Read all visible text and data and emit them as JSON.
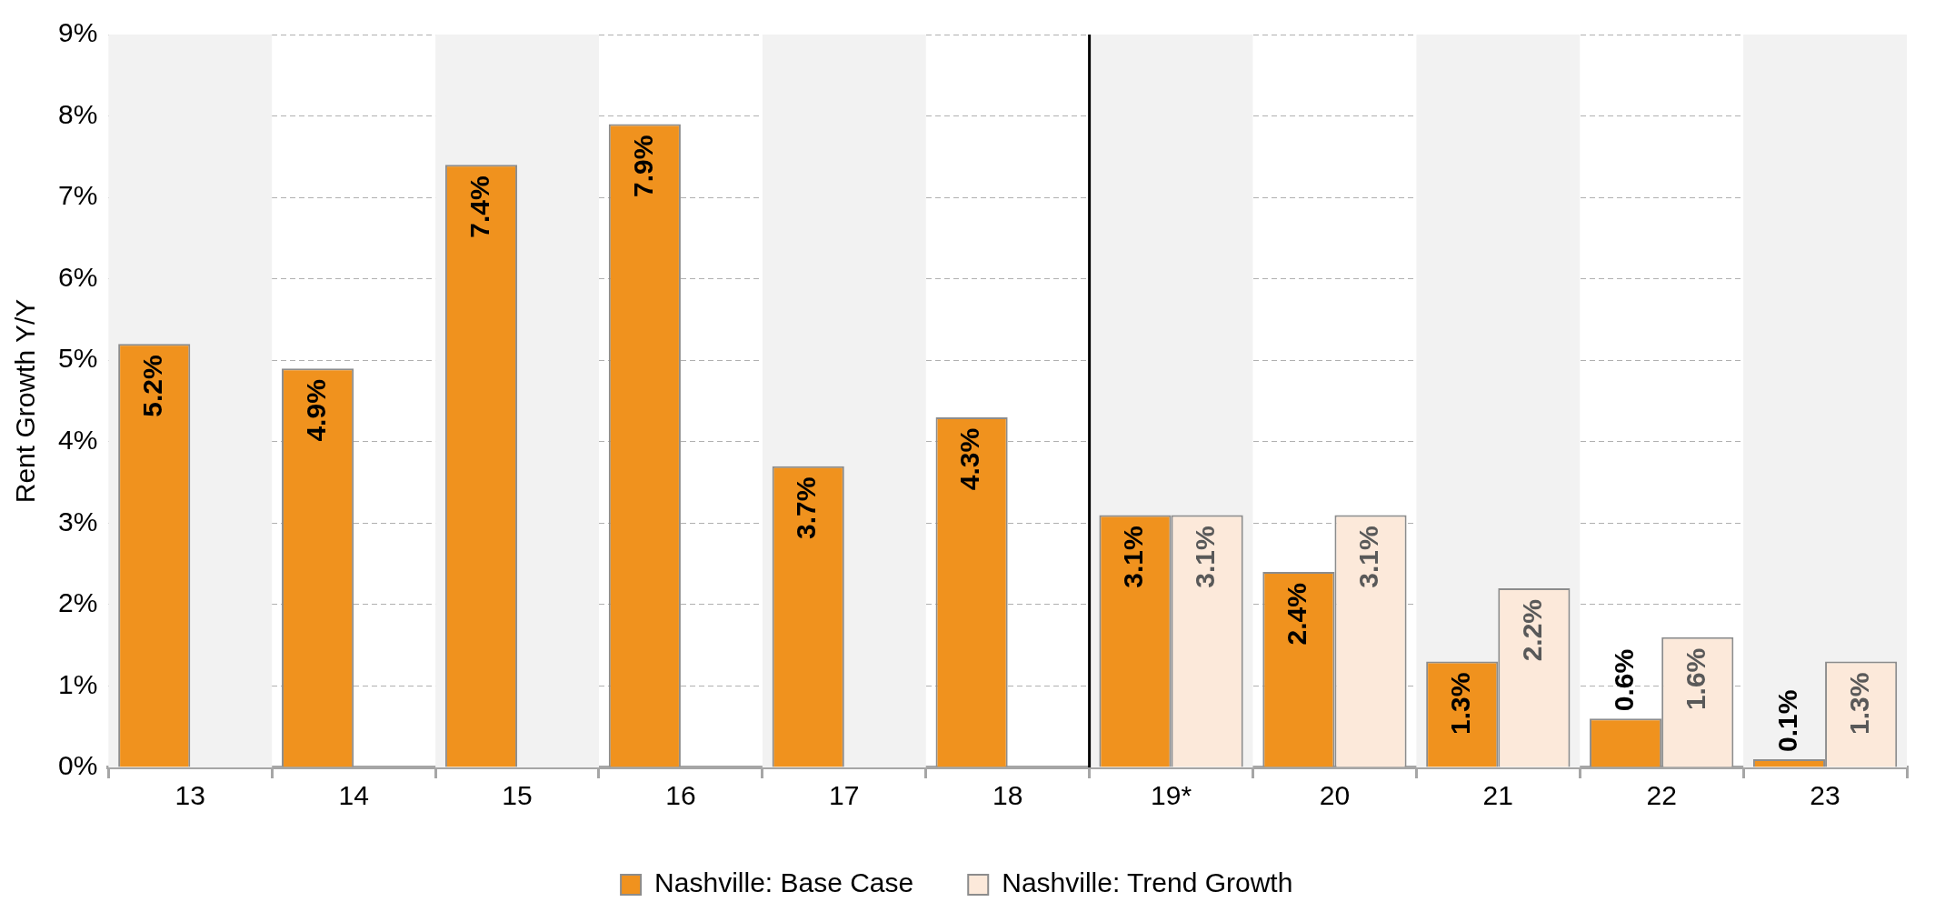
{
  "chart_data": {
    "type": "bar",
    "ylabel": "Rent Growth Y/Y",
    "categories": [
      "13",
      "14",
      "15",
      "16",
      "17",
      "18",
      "19*",
      "20",
      "21",
      "22",
      "23"
    ],
    "series": [
      {
        "name": "Nashville: Base Case",
        "color": "#f0921e",
        "values": [
          5.2,
          4.9,
          7.4,
          7.9,
          3.7,
          4.3,
          3.1,
          2.4,
          1.3,
          0.6,
          0.1
        ],
        "value_labels": [
          "5.2%",
          "4.9%",
          "7.4%",
          "7.9%",
          "3.7%",
          "4.3%",
          "3.1%",
          "2.4%",
          "1.3%",
          "0.6%",
          "0.1%"
        ]
      },
      {
        "name": "Nashville: Trend Growth",
        "color": "#fce9da",
        "values": [
          null,
          null,
          null,
          null,
          null,
          null,
          3.1,
          3.1,
          2.2,
          1.6,
          1.3
        ],
        "value_labels": [
          null,
          null,
          null,
          null,
          null,
          null,
          "3.1%",
          "3.1%",
          "2.2%",
          "1.6%",
          "1.3%"
        ]
      }
    ],
    "ylim": [
      0,
      9
    ],
    "yticks": [
      {
        "value": 0,
        "label": "0%"
      },
      {
        "value": 1,
        "label": "1%"
      },
      {
        "value": 2,
        "label": "2%"
      },
      {
        "value": 3,
        "label": "3%"
      },
      {
        "value": 4,
        "label": "4%"
      },
      {
        "value": 5,
        "label": "5%"
      },
      {
        "value": 6,
        "label": "6%"
      },
      {
        "value": 7,
        "label": "7%"
      },
      {
        "value": 8,
        "label": "8%"
      },
      {
        "value": 9,
        "label": "9%"
      }
    ],
    "grid": "y",
    "line_style": "dashed",
    "legend": "bottom",
    "bands": [
      {
        "axis": "x",
        "from": "13",
        "to": "13",
        "color": "#f2f2f2"
      },
      {
        "axis": "x",
        "from": "15",
        "to": "15",
        "color": "#f2f2f2"
      },
      {
        "axis": "x",
        "from": "17",
        "to": "17",
        "color": "#f2f2f2"
      },
      {
        "axis": "x",
        "from": "19*",
        "to": "19*",
        "color": "#f2f2f2"
      },
      {
        "axis": "x",
        "from": "21",
        "to": "21",
        "color": "#f2f2f2"
      },
      {
        "axis": "x",
        "from": "23",
        "to": "23",
        "color": "#f2f2f2"
      }
    ],
    "ref_lines": [
      {
        "axis": "x",
        "value": "19*",
        "color": "#000000"
      }
    ]
  }
}
